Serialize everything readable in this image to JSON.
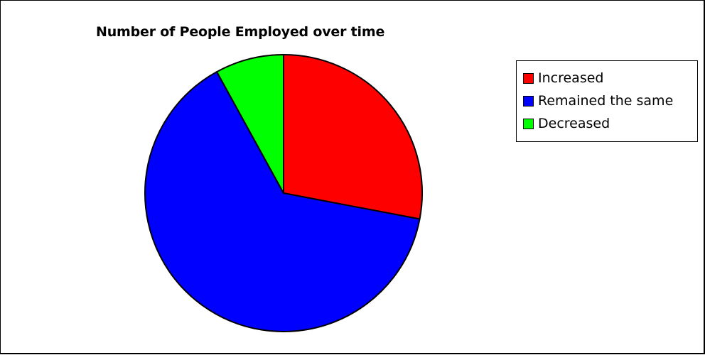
{
  "chart_data": {
    "type": "pie",
    "title": "Number of People Employed over time",
    "categories": [
      "Increased",
      "Remained the same",
      "Decreased"
    ],
    "values": [
      28,
      64,
      8
    ],
    "colors": [
      "#ff0000",
      "#0000ff",
      "#00ff00"
    ],
    "legend_position": "right",
    "start_angle_deg": 0,
    "direction": "clockwise"
  }
}
